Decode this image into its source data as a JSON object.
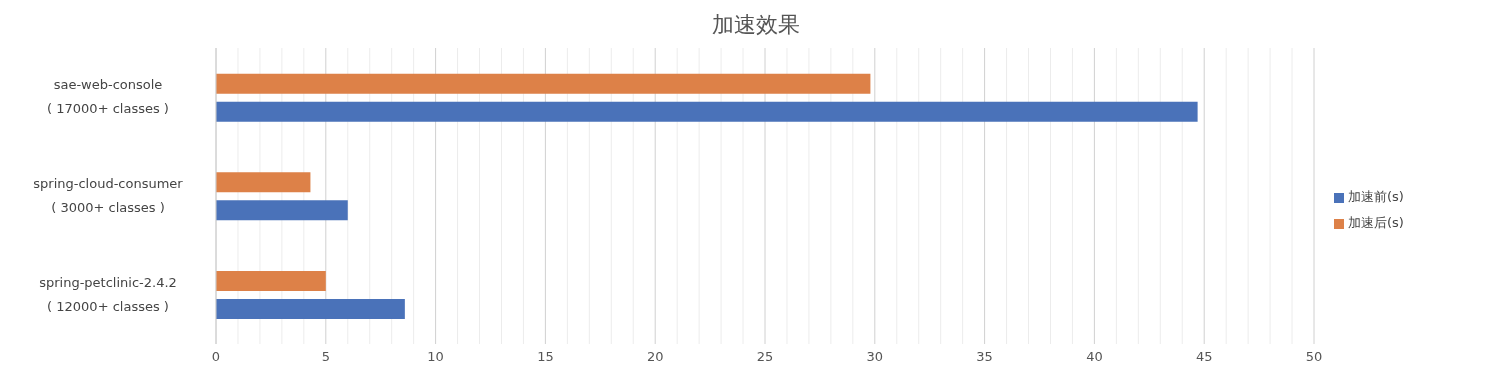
{
  "chart_data": {
    "type": "bar",
    "orientation": "horizontal",
    "title": "加速效果",
    "categories": [
      "sae-web-console\n( 17000+ classes )",
      "spring-cloud-consumer\n( 3000+ classes )",
      "spring-petclinic-2.4.2\n( 12000+ classes )"
    ],
    "series": [
      {
        "name": "加速后(s)",
        "color": "#dd8148",
        "values": [
          29.8,
          4.3,
          5.0
        ]
      },
      {
        "name": "加速前(s)",
        "color": "#4a72b9",
        "values": [
          44.7,
          6.0,
          8.6
        ]
      }
    ],
    "xlim": [
      0,
      50
    ],
    "xticks": [
      0,
      {
        "value": 1,
        "label": null
      },
      {
        "value": 2,
        "label": null
      },
      {
        "value": 3,
        "label": null
      },
      {
        "value": 4,
        "label": null
      },
      5,
      {
        "value": 6,
        "label": null
      },
      {
        "value": 7,
        "label": null
      },
      {
        "value": 8,
        "label": null
      },
      {
        "value": 9,
        "label": null
      },
      10,
      {
        "value": 11,
        "label": null
      },
      {
        "value": 12,
        "label": null
      },
      {
        "value": 13,
        "label": null
      },
      {
        "value": 14,
        "label": null
      },
      15,
      {
        "value": 16,
        "label": null
      },
      {
        "value": 17,
        "label": null
      },
      {
        "value": 18,
        "label": null
      },
      {
        "value": 19,
        "label": null
      },
      20,
      {
        "value": 21,
        "label": null
      },
      {
        "value": 22,
        "label": null
      },
      {
        "value": 23,
        "label": null
      },
      {
        "value": 24,
        "label": null
      },
      25,
      {
        "value": 26,
        "label": null
      },
      {
        "value": 27,
        "label": null
      },
      {
        "value": 28,
        "label": null
      },
      {
        "value": 29,
        "label": null
      },
      30,
      {
        "value": 31,
        "label": null
      },
      {
        "value": 32,
        "label": null
      },
      {
        "value": 33,
        "label": null
      },
      {
        "value": 34,
        "label": null
      },
      35,
      {
        "value": 36,
        "label": null
      },
      {
        "value": 37,
        "label": null
      },
      {
        "value": 38,
        "label": null
      },
      {
        "value": 39,
        "label": null
      },
      40,
      {
        "value": 41,
        "label": null
      },
      {
        "value": 42,
        "label": null
      },
      {
        "value": 43,
        "label": null
      },
      {
        "value": 44,
        "label": null
      },
      45,
      {
        "value": 46,
        "label": null
      },
      {
        "value": 47,
        "label": null
      },
      {
        "value": 48,
        "label": null
      },
      {
        "value": 49,
        "label": null
      },
      50
    ],
    "grid": "x",
    "legend": "right"
  }
}
